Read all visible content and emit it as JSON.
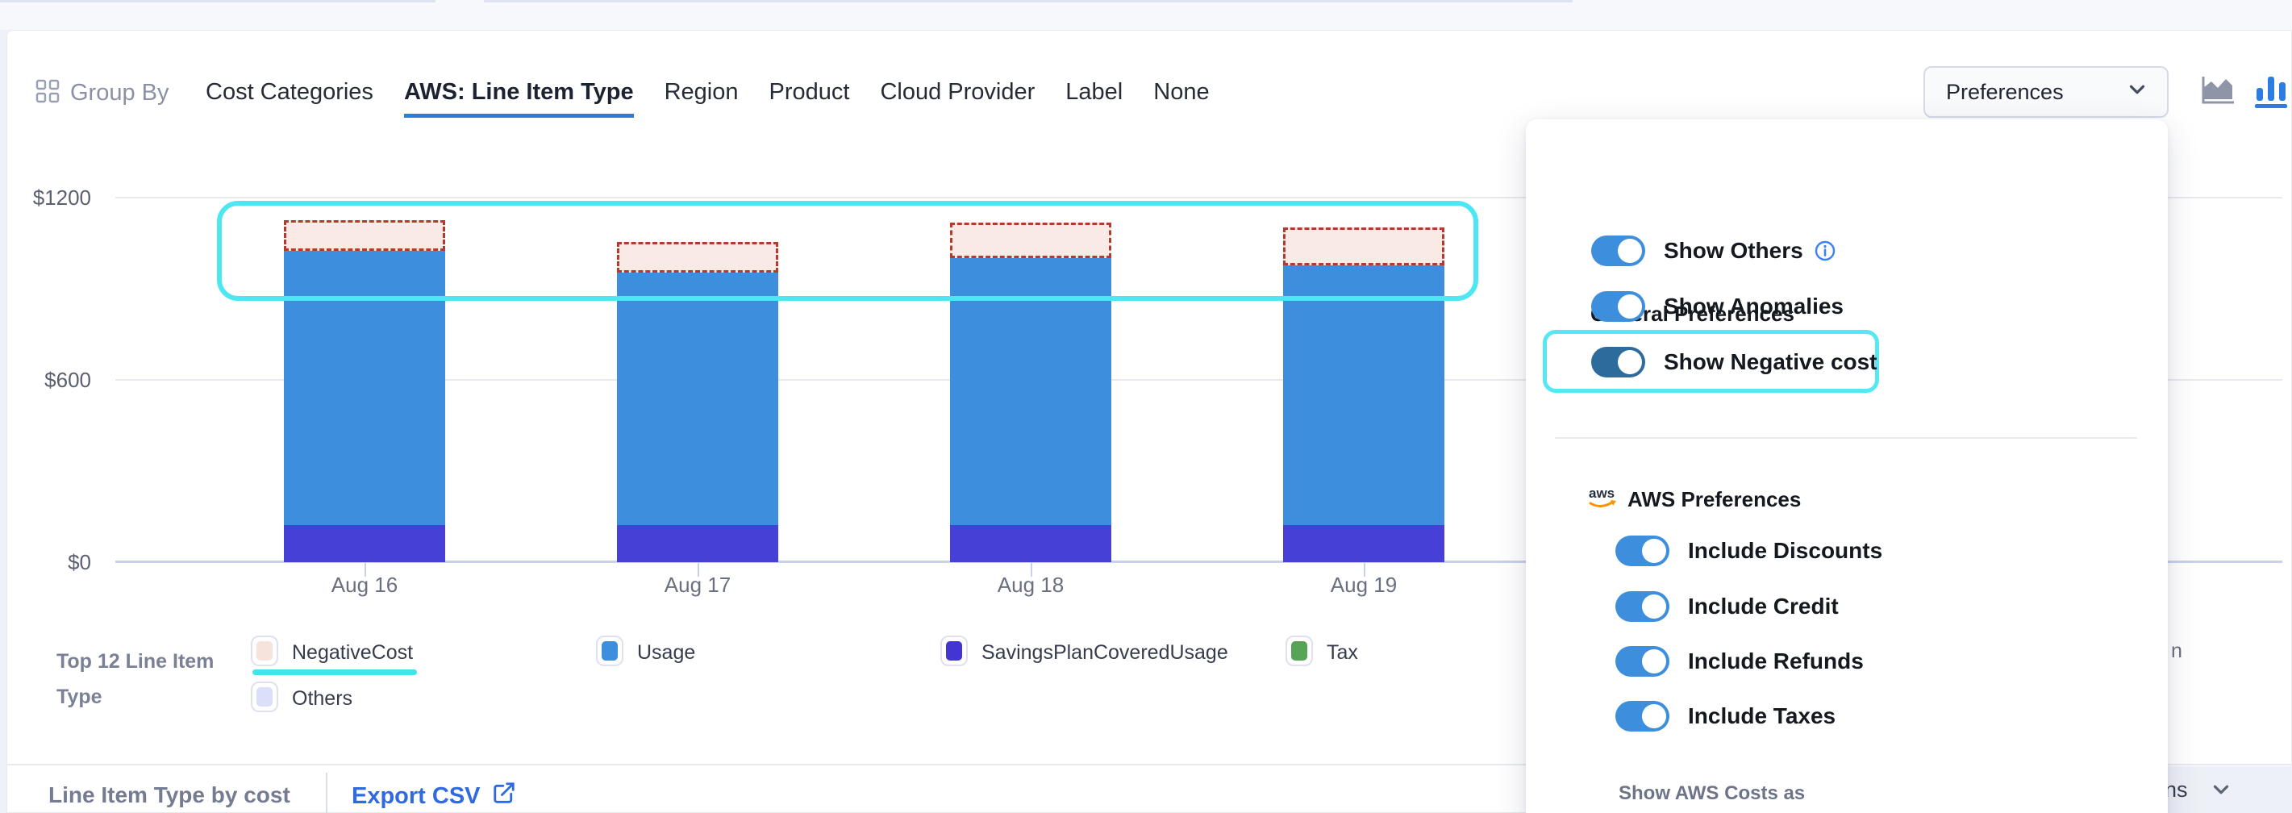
{
  "nav": {
    "group_by_label": "Group By",
    "tabs": [
      {
        "label": "Cost Categories",
        "active": false
      },
      {
        "label": "AWS: Line Item Type",
        "active": true
      },
      {
        "label": "Region",
        "active": false
      },
      {
        "label": "Product",
        "active": false
      },
      {
        "label": "Cloud Provider",
        "active": false
      },
      {
        "label": "Label",
        "active": false
      },
      {
        "label": "None",
        "active": false
      }
    ]
  },
  "toolbar": {
    "preferences_label": "Preferences",
    "active_chart_icon": "bar-chart"
  },
  "chart_data": {
    "type": "stacked-bar",
    "categories": [
      "Aug 16",
      "Aug 17",
      "Aug 18",
      "Aug 19"
    ],
    "series": [
      {
        "name": "SavingsPlanCoveredUsage",
        "color": "#4640d6",
        "values": [
          122,
          122,
          122,
          122
        ]
      },
      {
        "name": "Usage",
        "color": "#3d8edd",
        "values": [
          903,
          831,
          879,
          855
        ]
      },
      {
        "name": "Tax",
        "color": "#57a457",
        "values": [
          0,
          0,
          0,
          0
        ]
      },
      {
        "name": "NegativeCost",
        "style": "dashed-overlay",
        "border_color": "#b23a2e",
        "fill": "#faeae6",
        "values": [
          -101,
          -101,
          -117,
          -125
        ]
      }
    ],
    "ylim": [
      0,
      1200
    ],
    "y_ticks": [
      "$0",
      "$600",
      "$1200"
    ],
    "grid": true,
    "legend_position": "bottom",
    "annotation": "cyan highlight box around negative-cost dashed segments"
  },
  "legend": {
    "title_line1": "Top 12 Line Item",
    "title_line2": "Type",
    "items": [
      {
        "label": "NegativeCost",
        "color": "#f6e3dc",
        "underlined": true,
        "row": 1
      },
      {
        "label": "Usage",
        "color": "#3d8edd",
        "row": 1
      },
      {
        "label": "SavingsPlanCoveredUsage",
        "color": "#4335d4",
        "row": 1
      },
      {
        "label": "Tax",
        "color": "#57a457",
        "row": 1
      },
      {
        "label": "Others",
        "color": "#d9e0f8",
        "row": 2
      }
    ],
    "partial_item_text": "n"
  },
  "footer": {
    "title": "Line Item Type by cost",
    "export_label": "Export CSV",
    "columns_label": "Columns"
  },
  "panel": {
    "general": {
      "heading": "General Preferences",
      "toggles": [
        {
          "label": "Show Others",
          "on": true,
          "info": true
        },
        {
          "label": "Show Anomalies",
          "on": true
        },
        {
          "label": "Show Negative cost",
          "on": true,
          "dark": true,
          "highlighted": true
        }
      ]
    },
    "aws": {
      "heading": "AWS Preferences",
      "toggles": [
        {
          "label": "Include Discounts",
          "on": true
        },
        {
          "label": "Include Credit",
          "on": true
        },
        {
          "label": "Include Refunds",
          "on": true
        },
        {
          "label": "Include Taxes",
          "on": true
        }
      ]
    },
    "footer_label": "Show AWS Costs as"
  },
  "colors": {
    "accent_blue": "#2c7de2",
    "toggle_blue": "#3d8edd",
    "toggle_dark_blue": "#2e6b9d",
    "cyan_highlight": "#4ce7f2",
    "export_link_blue": "#2f6ae0",
    "bar_usage": "#3d8edd",
    "bar_savings_plan": "#4640d6",
    "negative_border": "#b23a2e",
    "negative_fill": "#faeae6"
  }
}
